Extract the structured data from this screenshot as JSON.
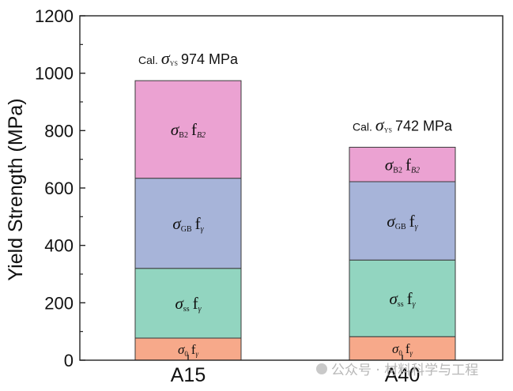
{
  "chart_data": {
    "type": "bar",
    "stacked": true,
    "categories": [
      "A15",
      "A40"
    ],
    "series": [
      {
        "name": "σ0 fγ",
        "label_parts": {
          "sigma": "σ",
          "sub": "0",
          "f": "f",
          "fsub": "γ"
        },
        "values": [
          77,
          82
        ],
        "color": "#F7A98A"
      },
      {
        "name": "σss fγ",
        "label_parts": {
          "sigma": "σ",
          "sub": "ss",
          "f": "f",
          "fsub": "γ"
        },
        "values": [
          243,
          267
        ],
        "color": "#92D5C0"
      },
      {
        "name": "σGB fγ",
        "label_parts": {
          "sigma": "σ",
          "sub": "GB",
          "f": "f",
          "fsub": "γ"
        },
        "values": [
          314,
          273
        ],
        "color": "#A7B4D9"
      },
      {
        "name": "σB2 fB2",
        "label_parts": {
          "sigma": "σ",
          "sub": "B2",
          "f": "f",
          "fsub": "B2"
        },
        "values": [
          340,
          120
        ],
        "color": "#EBA2D2"
      }
    ],
    "totals": [
      974,
      742
    ],
    "total_annotations": [
      {
        "prefix": "Cal.",
        "sigma": "σ",
        "sub": "YS",
        "value": "974 MPa"
      },
      {
        "prefix": "Cal.",
        "sigma": "σ",
        "sub": "YS",
        "value": "742 MPa"
      }
    ],
    "xlabel": "",
    "ylabel": "Yield Strength (MPa)",
    "ylim": [
      0,
      1200
    ],
    "yticks": [
      0,
      200,
      400,
      600,
      800,
      1000,
      1200
    ],
    "ytick_labels": [
      "0",
      "200",
      "400",
      "600",
      "800",
      "1000",
      "1200"
    ],
    "grid": false,
    "legend": "none"
  },
  "watermark": "公众号 · 材料科学与工程"
}
